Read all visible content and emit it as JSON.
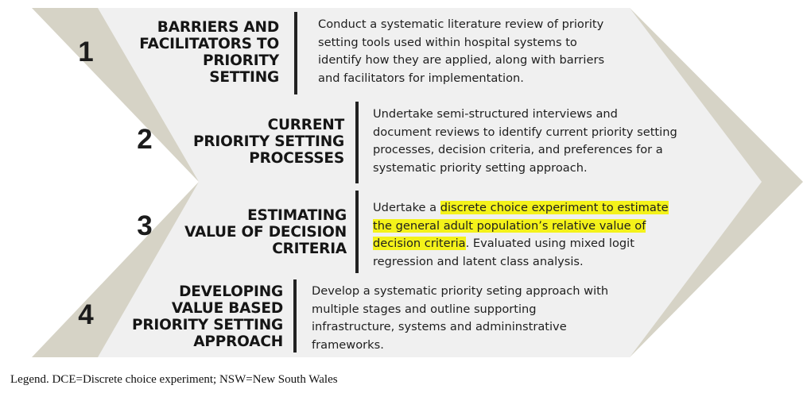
{
  "colors": {
    "chevron_outer": "#d6d3c6",
    "chevron_inner": "#f0f0f0",
    "highlight": "#f4f21a",
    "divider": "#222222"
  },
  "steps": [
    {
      "number": "1",
      "title_lines": [
        "BARRIERS AND",
        "FACILITATORS TO",
        "PRIORITY",
        "SETTING"
      ],
      "desc_lines": [
        "Conduct a systematic literature review of priority",
        "setting tools used within hospital systems to",
        "identify how they are applied, along with barriers",
        "and facilitators for implementation."
      ]
    },
    {
      "number": "2",
      "title_lines": [
        "CURRENT",
        "PRIORITY SETTING",
        "PROCESSES"
      ],
      "desc_lines": [
        "Undertake semi-structured interviews and",
        "document reviews to identify current priority setting",
        "processes, decision criteria, and preferences for a",
        "systematic priority setting approach."
      ]
    },
    {
      "number": "3",
      "title_lines": [
        "ESTIMATING",
        "VALUE OF DECISION",
        "CRITERIA"
      ],
      "desc_line1_prefix": "Udertake a ",
      "desc_line1_highlight": "discrete choice experiment to estimate",
      "desc_line2_highlight": "the general adult population’s relative value of",
      "desc_line3_highlight": "decision criteria",
      "desc_line3_rest": ". Evaluated using mixed logit",
      "desc_line4": "regression and latent class analysis."
    },
    {
      "number": "4",
      "title_lines": [
        "DEVELOPING",
        "VALUE BASED",
        "PRIORITY SETTING",
        "APPROACH"
      ],
      "desc_lines": [
        "Develop a systematic priority seting approach with",
        "multiple stages and outline supporting",
        "infrastructure, systems and admininstrative",
        "frameworks."
      ]
    }
  ],
  "legend": "Legend. DCE=Discrete choice experiment; NSW=New South Wales"
}
